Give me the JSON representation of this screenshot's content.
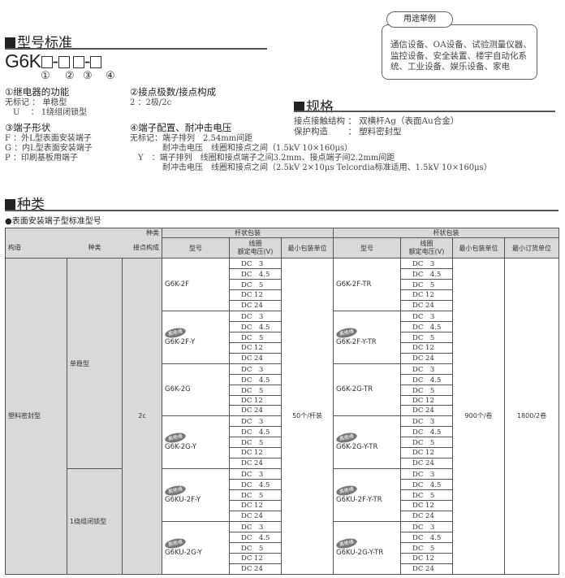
{
  "model_std": {
    "title": "型号标准",
    "code_prefix": "G6K",
    "nums": [
      "①",
      "②",
      "③",
      "④"
    ],
    "f1": {
      "title": "①继电器的功能",
      "lines": [
        "无标记 ： 单稳型",
        "　U　 ： 1绕组闭锁型"
      ]
    },
    "f2": {
      "title": "②接点极数/接点构成",
      "lines": [
        "2 ：2极/2c"
      ]
    },
    "f3": {
      "title": "③端子形状",
      "lines": [
        "F ：外L型表面安装端子",
        "G ：内L型表面安装端子",
        "P ：印刷基板用端子"
      ]
    },
    "f4": {
      "title": "④端子配置、耐冲击电压",
      "lines": [
        "无标记：端子排列　2.54mm间距",
        "　　　　耐冲击电压　线圈和接点之间（1.5kV 10×160μs）",
        "　Y　：端子排列　线圈和接点端子之间3.2mm、接点端子间2.2mm间距",
        "　　　　耐冲击电压　线圈和接点之间（2.5kV 2×10μs Telcordia标准适用、1.5kV 10×160μs）"
      ]
    }
  },
  "usage": {
    "tag": "用途举例",
    "lines": [
      "通信设备、OA设备、试验测量仪器、",
      "监控设备、安全装置、楼宇自动化系",
      "统、工业设备、娱乐设备、家电"
    ]
  },
  "spec": {
    "title": "规格",
    "lines": [
      "接点接触结构 ： 双横杆Ag（表面Au合金）",
      "保护构造　　 ： 塑料密封型"
    ]
  },
  "types": {
    "title": "种类",
    "subtitle": "●表面安装端子型标准型号",
    "header": {
      "kind": "种类",
      "pack": "杆状包装",
      "tape": "杆状包装",
      "structure": "构造",
      "kind2": "种类",
      "contact": "接点构成",
      "model": "型号",
      "coil": "线圈",
      "rated": "额定电压(V)",
      "min_pack": "最小包装单位",
      "model2": "型号",
      "min_pack2": "最小包装单位",
      "min_order": "最小订货单位"
    },
    "structure": "塑料密封型",
    "contact": "2c",
    "kinds": [
      "单稳型",
      "1绕组闭锁型"
    ],
    "min_pack_stick": "50个/杆装",
    "min_pack_tape": "900个/卷",
    "min_order_tape": "1800/2卷",
    "badge": "高绝缘",
    "voltages": [
      "DC　3",
      "DC　4.5",
      "DC　5",
      "DC 12",
      "DC 24"
    ],
    "models": [
      {
        "stick": "G6K-2F",
        "tape": "G6K-2F-TR",
        "high_insulation": false
      },
      {
        "stick": "G6K-2F-Y",
        "tape": "G6K-2F-Y-TR",
        "high_insulation": true
      },
      {
        "stick": "G6K-2G",
        "tape": "G6K-2G-TR",
        "high_insulation": false
      },
      {
        "stick": "G6K-2G-Y",
        "tape": "G6K-2G-Y-TR",
        "high_insulation": true
      },
      {
        "stick": "G6KU-2F-Y",
        "tape": "G6KU-2F-Y-TR",
        "high_insulation": true
      },
      {
        "stick": "G6KU-2G-Y",
        "tape": "G6KU-2G-Y-TR",
        "high_insulation": true
      }
    ]
  }
}
